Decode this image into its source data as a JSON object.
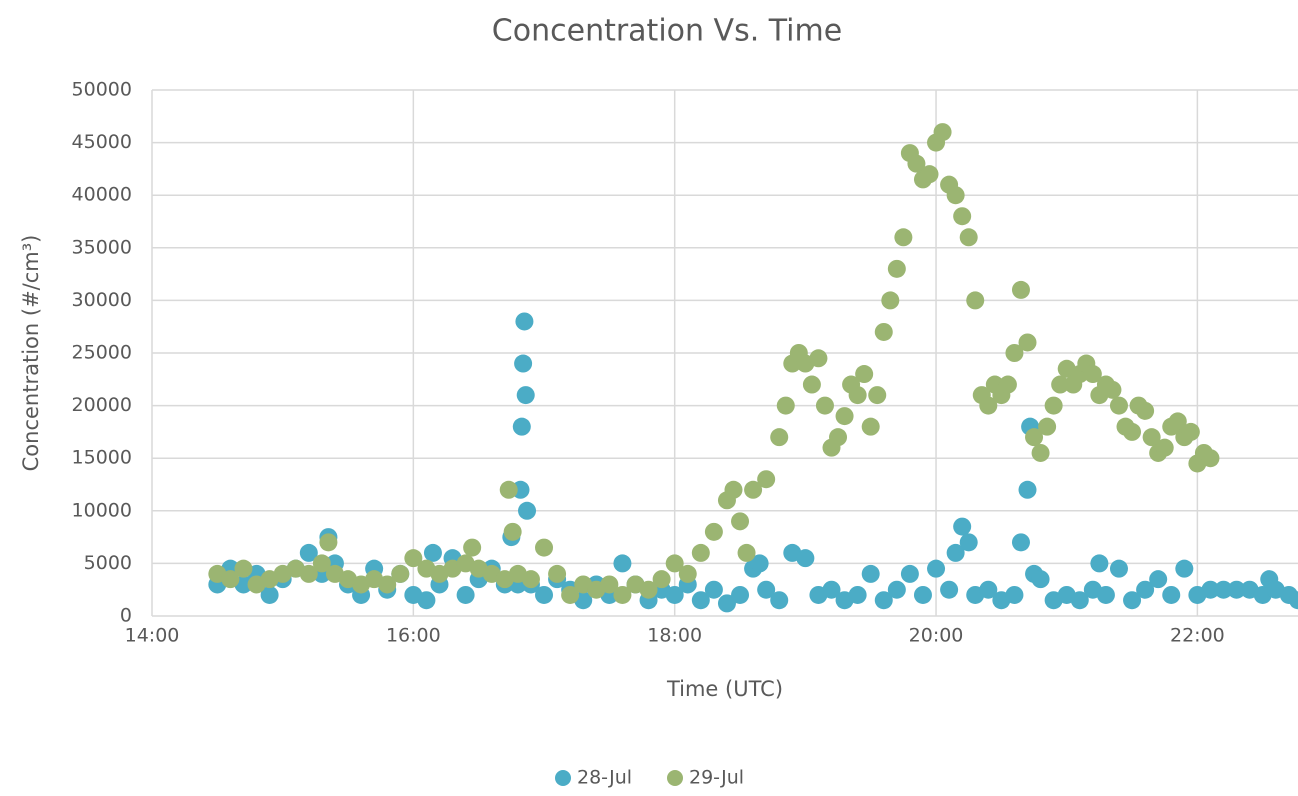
{
  "chart_data": {
    "type": "scatter",
    "title": "Concentration Vs. Time",
    "x_label": "Time (UTC)",
    "y_label": "Concentration (#/cm³)",
    "xlim": [
      14,
      22.77
    ],
    "xticks": [
      {
        "value": 14,
        "label": "14:00"
      },
      {
        "value": 16,
        "label": "16:00"
      },
      {
        "value": 18,
        "label": "18:00"
      },
      {
        "value": 20,
        "label": "20:00"
      },
      {
        "value": 22,
        "label": "22:00"
      }
    ],
    "ylim": [
      0,
      50000
    ],
    "yticks": [
      0,
      5000,
      10000,
      15000,
      20000,
      25000,
      30000,
      35000,
      40000,
      45000,
      50000
    ],
    "grid": true,
    "legend": "bottom",
    "series": [
      {
        "name": "28-Jul",
        "color": "#4bacc6",
        "x": [
          14.5,
          14.6,
          14.7,
          14.8,
          14.9,
          15,
          15.1,
          15.2,
          15.3,
          15.35,
          15.4,
          15.5,
          15.6,
          15.7,
          15.8,
          15.9,
          16,
          16.1,
          16.15,
          16.2,
          16.3,
          16.4,
          16.5,
          16.6,
          16.7,
          16.75,
          16.8,
          16.82,
          16.83,
          16.84,
          16.85,
          16.86,
          16.87,
          16.9,
          17,
          17.1,
          17.2,
          17.3,
          17.4,
          17.5,
          17.6,
          17.7,
          17.8,
          17.9,
          18,
          18.1,
          18.2,
          18.3,
          18.4,
          18.5,
          18.6,
          18.65,
          18.7,
          18.8,
          18.9,
          19,
          19.1,
          19.2,
          19.3,
          19.4,
          19.5,
          19.6,
          19.7,
          19.8,
          19.9,
          20,
          20.1,
          20.15,
          20.2,
          20.25,
          20.3,
          20.4,
          20.5,
          20.6,
          20.65,
          20.7,
          20.72,
          20.75,
          20.8,
          20.9,
          21,
          21.1,
          21.2,
          21.25,
          21.3,
          21.4,
          21.5,
          21.6,
          21.7,
          21.8,
          21.9,
          22,
          22.1,
          22.2,
          22.3,
          22.4,
          22.5,
          22.55,
          22.6,
          22.7,
          22.77
        ],
        "values": [
          3000,
          4500,
          3000,
          4000,
          2000,
          3500,
          4500,
          6000,
          4000,
          7500,
          5000,
          3000,
          2000,
          4500,
          2500,
          4000,
          2000,
          1500,
          6000,
          3000,
          5500,
          2000,
          3500,
          4500,
          3000,
          7500,
          3000,
          12000,
          18000,
          24000,
          28000,
          21000,
          10000,
          3000,
          2000,
          3500,
          2500,
          1500,
          3000,
          2000,
          5000,
          3000,
          1500,
          2500,
          2000,
          3000,
          1500,
          2500,
          1200,
          2000,
          4500,
          5000,
          2500,
          1500,
          6000,
          5500,
          2000,
          2500,
          1500,
          2000,
          4000,
          1500,
          2500,
          4000,
          2000,
          4500,
          2500,
          6000,
          8500,
          7000,
          2000,
          2500,
          1500,
          2000,
          7000,
          12000,
          18000,
          4000,
          3500,
          1500,
          2000,
          1500,
          2500,
          5000,
          2000,
          4500,
          1500,
          2500,
          3500,
          2000,
          4500,
          2000,
          2500,
          2500,
          2500,
          2500,
          2000,
          3500,
          2500,
          2000,
          1500
        ]
      },
      {
        "name": "29-Jul",
        "color": "#9bb572",
        "x": [
          14.5,
          14.6,
          14.7,
          14.8,
          14.9,
          15,
          15.1,
          15.2,
          15.3,
          15.35,
          15.4,
          15.5,
          15.6,
          15.7,
          15.8,
          15.9,
          16,
          16.1,
          16.2,
          16.3,
          16.4,
          16.45,
          16.5,
          16.6,
          16.7,
          16.73,
          16.76,
          16.8,
          16.9,
          17,
          17.1,
          17.2,
          17.3,
          17.4,
          17.5,
          17.6,
          17.7,
          17.8,
          17.9,
          18,
          18.1,
          18.2,
          18.3,
          18.4,
          18.45,
          18.5,
          18.55,
          18.6,
          18.7,
          18.8,
          18.85,
          18.9,
          18.95,
          19,
          19.05,
          19.1,
          19.15,
          19.2,
          19.25,
          19.3,
          19.35,
          19.4,
          19.45,
          19.5,
          19.55,
          19.6,
          19.65,
          19.7,
          19.75,
          19.8,
          19.85,
          19.9,
          19.95,
          20,
          20.05,
          20.1,
          20.15,
          20.2,
          20.25,
          20.3,
          20.35,
          20.4,
          20.45,
          20.5,
          20.55,
          20.6,
          20.65,
          20.7,
          20.75,
          20.8,
          20.85,
          20.9,
          20.95,
          21,
          21.05,
          21.1,
          21.15,
          21.2,
          21.25,
          21.3,
          21.35,
          21.4,
          21.45,
          21.5,
          21.55,
          21.6,
          21.65,
          21.7,
          21.75,
          21.8,
          21.85,
          21.9,
          21.95,
          22,
          22.05,
          22.1
        ],
        "values": [
          4000,
          3500,
          4500,
          3000,
          3500,
          4000,
          4500,
          4000,
          5000,
          7000,
          4000,
          3500,
          3000,
          3500,
          3000,
          4000,
          5500,
          4500,
          4000,
          4500,
          5000,
          6500,
          4500,
          4000,
          3500,
          12000,
          8000,
          4000,
          3500,
          6500,
          4000,
          2000,
          3000,
          2500,
          3000,
          2000,
          3000,
          2500,
          3500,
          5000,
          4000,
          6000,
          8000,
          11000,
          12000,
          9000,
          6000,
          12000,
          13000,
          17000,
          20000,
          24000,
          25000,
          24000,
          22000,
          24500,
          20000,
          16000,
          17000,
          19000,
          22000,
          21000,
          23000,
          18000,
          21000,
          27000,
          30000,
          33000,
          36000,
          44000,
          43000,
          41500,
          42000,
          45000,
          46000,
          41000,
          40000,
          38000,
          36000,
          30000,
          21000,
          20000,
          22000,
          21000,
          22000,
          25000,
          31000,
          26000,
          17000,
          15500,
          18000,
          20000,
          22000,
          23500,
          22000,
          23000,
          24000,
          23000,
          21000,
          22000,
          21500,
          20000,
          18000,
          17500,
          20000,
          19500,
          17000,
          15500,
          16000,
          18000,
          18500,
          17000,
          17500,
          14500,
          15500,
          15000
        ]
      }
    ]
  }
}
